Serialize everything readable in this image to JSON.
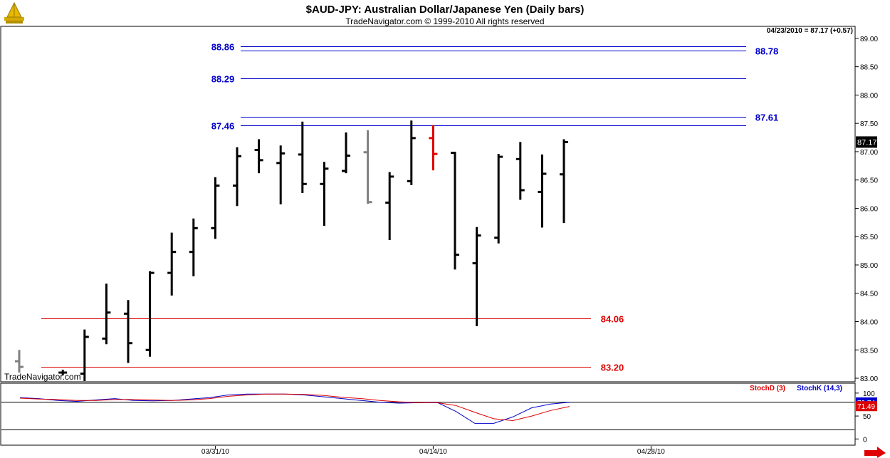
{
  "header": {
    "title": "$AUD-JPY:  Australian Dollar/Japanese Yen  (Daily bars)",
    "subtitle": "TradeNavigator.com © 1999-2010 All rights reserved",
    "last_quote": "04/23/2010 = 87.17 (+0.57)",
    "watermark": "TradeNavigator.com"
  },
  "chart_data": [
    {
      "type": "ohlc",
      "ylim": [
        82.95,
        89.2
      ],
      "y_ticks": [
        "89.00",
        "88.50",
        "88.00",
        "87.50",
        "87.00",
        "86.50",
        "86.00",
        "85.50",
        "85.00",
        "84.50",
        "84.00",
        "83.50",
        "83.00"
      ],
      "y_tick_values": [
        89.0,
        88.5,
        88.0,
        87.5,
        87.0,
        86.5,
        86.0,
        85.5,
        85.0,
        84.5,
        84.0,
        83.5,
        83.0
      ],
      "x_tick_labels": [
        "03/31/10",
        "04/14/10",
        "04/28/10"
      ],
      "x_tick_bar_index": [
        9,
        19,
        29
      ],
      "current_price_label": "87.17",
      "current_price": 87.17,
      "bars": [
        {
          "o": 83.3,
          "h": 83.5,
          "l": 83.1,
          "c": 83.2,
          "color": "#808080"
        },
        null,
        {
          "o": 83.1,
          "h": 83.15,
          "l": 83.05,
          "c": 83.1,
          "color": "#000000"
        },
        {
          "o": 83.08,
          "h": 83.86,
          "l": 82.95,
          "c": 83.73,
          "color": "#000000"
        },
        {
          "o": 83.7,
          "h": 84.67,
          "l": 83.6,
          "c": 84.16,
          "color": "#000000"
        },
        {
          "o": 84.14,
          "h": 84.38,
          "l": 83.27,
          "c": 83.62,
          "color": "#000000"
        },
        {
          "o": 83.5,
          "h": 84.89,
          "l": 83.38,
          "c": 84.86,
          "color": "#000000"
        },
        {
          "o": 84.86,
          "h": 85.57,
          "l": 84.46,
          "c": 85.23,
          "color": "#000000"
        },
        {
          "o": 85.23,
          "h": 85.82,
          "l": 84.8,
          "c": 85.65,
          "color": "#000000"
        },
        {
          "o": 85.65,
          "h": 86.55,
          "l": 85.46,
          "c": 86.4,
          "color": "#000000"
        },
        {
          "o": 86.4,
          "h": 87.08,
          "l": 86.04,
          "c": 86.92,
          "color": "#000000"
        },
        {
          "o": 87.03,
          "h": 87.22,
          "l": 86.62,
          "c": 86.85,
          "color": "#000000"
        },
        {
          "o": 86.8,
          "h": 87.11,
          "l": 86.07,
          "c": 86.97,
          "color": "#000000"
        },
        {
          "o": 86.95,
          "h": 87.53,
          "l": 86.27,
          "c": 86.43,
          "color": "#000000"
        },
        {
          "o": 86.43,
          "h": 86.82,
          "l": 85.69,
          "c": 86.7,
          "color": "#000000"
        },
        {
          "o": 86.66,
          "h": 87.34,
          "l": 86.62,
          "c": 86.93,
          "color": "#000000"
        },
        {
          "o": 86.99,
          "h": 87.38,
          "l": 86.08,
          "c": 86.11,
          "color": "#808080"
        },
        {
          "o": 86.1,
          "h": 86.64,
          "l": 85.44,
          "c": 86.56,
          "color": "#000000"
        },
        {
          "o": 86.48,
          "h": 87.55,
          "l": 86.41,
          "c": 87.24,
          "color": "#000000"
        },
        {
          "o": 87.24,
          "h": 87.47,
          "l": 86.67,
          "c": 86.96,
          "color": "#e00000"
        },
        {
          "o": 86.98,
          "h": 87.0,
          "l": 84.92,
          "c": 85.18,
          "color": "#000000"
        },
        {
          "o": 85.03,
          "h": 85.67,
          "l": 83.92,
          "c": 85.52,
          "color": "#000000"
        },
        {
          "o": 85.48,
          "h": 86.96,
          "l": 85.38,
          "c": 86.91,
          "color": "#000000"
        },
        {
          "o": 86.87,
          "h": 87.17,
          "l": 86.15,
          "c": 86.32,
          "color": "#000000"
        },
        {
          "o": 86.29,
          "h": 86.95,
          "l": 85.66,
          "c": 86.61,
          "color": "#000000"
        },
        {
          "o": 86.6,
          "h": 87.22,
          "l": 85.74,
          "c": 87.17,
          "color": "#000000"
        }
      ],
      "levels": [
        {
          "label": "88.86",
          "value": 88.86,
          "color": "#0000cc",
          "label_side": "left"
        },
        {
          "label": "88.78",
          "value": 88.78,
          "color": "#0000cc",
          "label_side": "right"
        },
        {
          "label": "88.29",
          "value": 88.29,
          "color": "#0000cc",
          "label_side": "left"
        },
        {
          "label": "87.61",
          "value": 87.61,
          "color": "#0000cc",
          "label_side": "right"
        },
        {
          "label": "87.46",
          "value": 87.46,
          "color": "#0000cc",
          "label_side": "left"
        },
        {
          "label": "84.06",
          "value": 84.06,
          "color": "#dd0000",
          "label_side": "right"
        },
        {
          "label": "83.20",
          "value": 83.2,
          "color": "#dd0000",
          "label_side": "right"
        }
      ]
    },
    {
      "type": "line",
      "ylim": [
        -12,
        120
      ],
      "y_ticks": [
        "100",
        "50",
        "0"
      ],
      "y_tick_values": [
        100,
        50,
        0
      ],
      "reference_lines": [
        80,
        20
      ],
      "legend": [
        {
          "name": "StochD (3)",
          "color": "#dd0000"
        },
        {
          "name": "StochK (14,3)",
          "color": "#0000cc"
        }
      ],
      "value_labels": [
        {
          "text": "79.74",
          "value": 79.74,
          "color": "#0000cc"
        },
        {
          "text": "71.49",
          "value": 71.49,
          "color": "#dd0000"
        }
      ],
      "series": [
        {
          "name": "StochK (14,3)",
          "color": "#0000cc",
          "values": [
            90,
            88,
            84,
            82,
            85,
            88,
            84,
            83,
            84,
            87,
            90,
            96,
            98,
            98,
            98,
            96,
            92,
            88,
            84,
            80,
            78,
            79,
            80,
            60,
            34,
            34,
            48,
            68,
            76,
            80
          ]
        },
        {
          "name": "StochD (3)",
          "color": "#dd0000",
          "values": [
            89,
            87,
            86,
            84,
            84,
            86,
            86,
            85,
            84,
            85,
            88,
            93,
            96,
            98,
            98,
            97,
            95,
            91,
            88,
            84,
            81,
            79,
            79,
            73,
            58,
            44,
            40,
            50,
            62,
            71
          ]
        }
      ]
    }
  ]
}
